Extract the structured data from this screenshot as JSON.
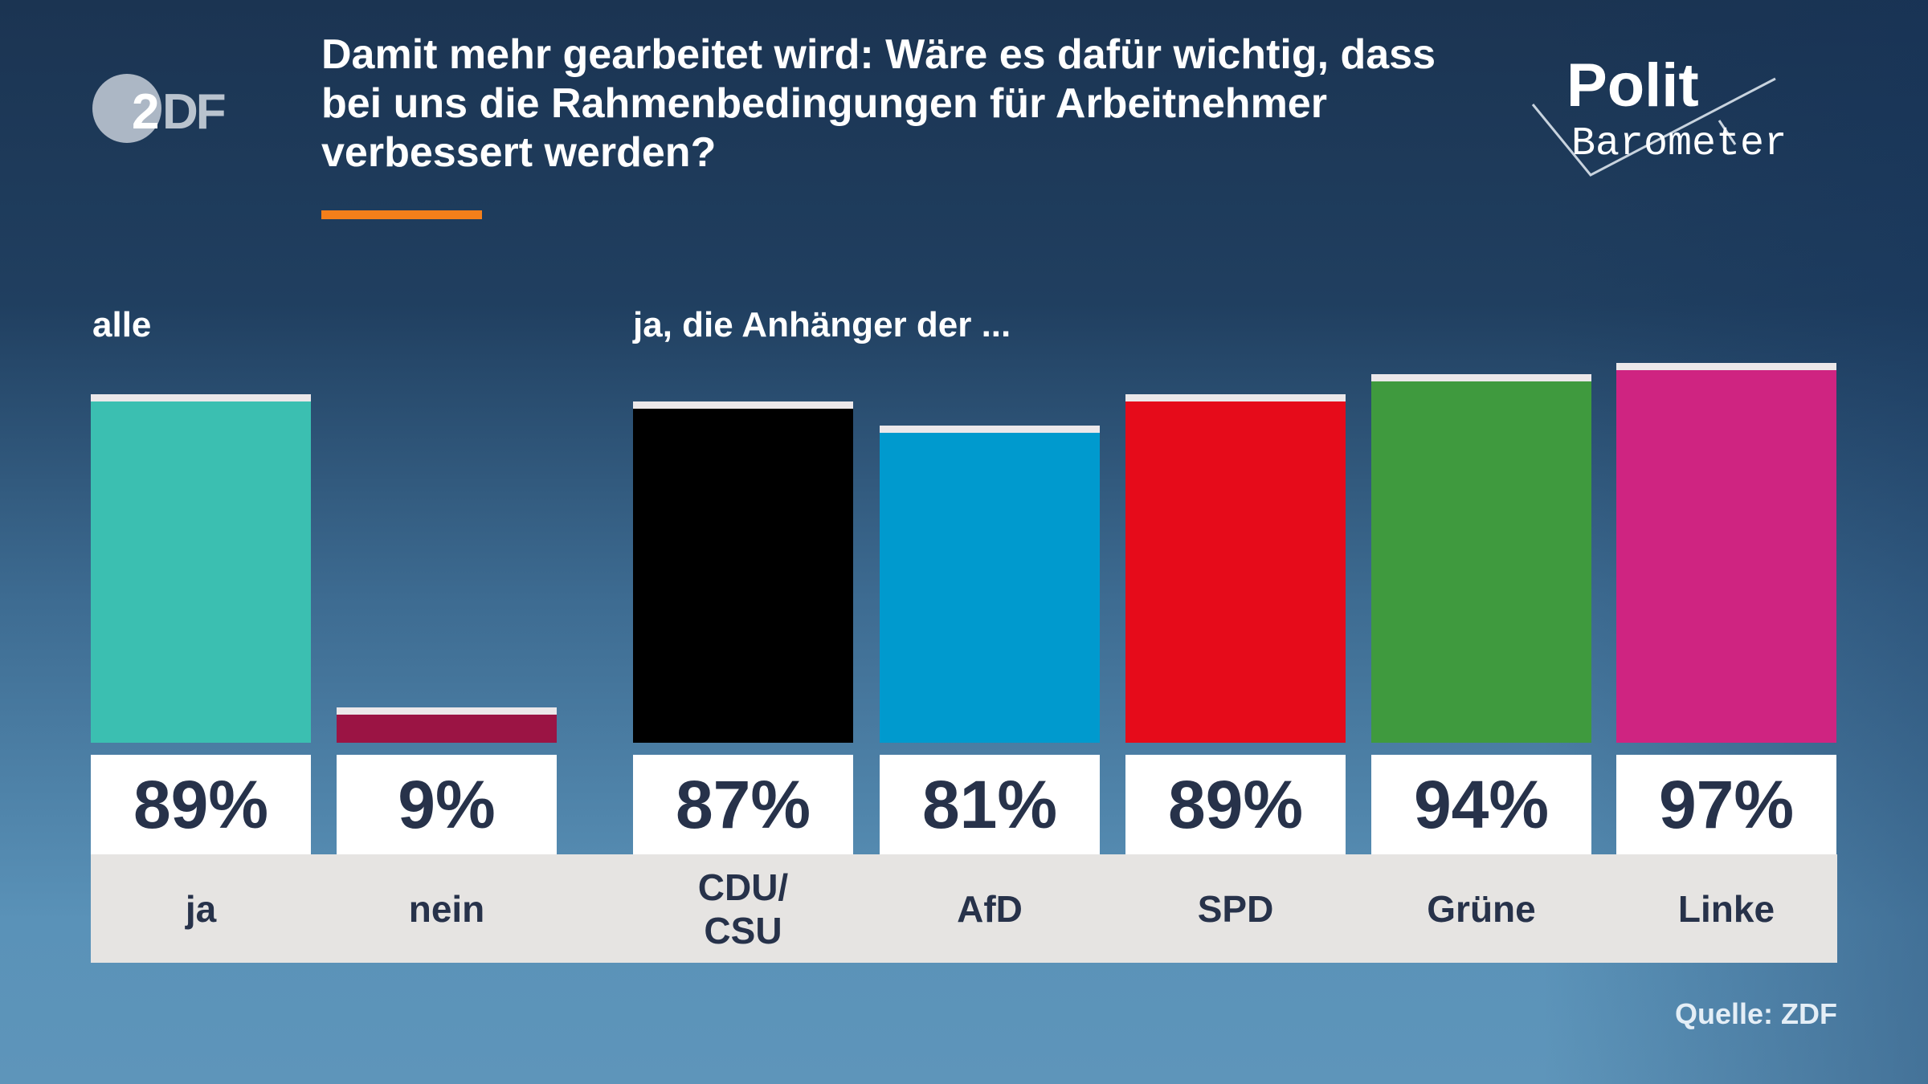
{
  "title": "Damit mehr gearbeitet wird: Wäre es dafür wichtig, dass bei uns die Rahmenbedingungen für Arbeitnehmer verbessert werden?",
  "logos": {
    "broadcaster": "ZDF",
    "program_line1": "Polit",
    "program_line2": "Barometer"
  },
  "accent_color": "#f47f1a",
  "source": "Quelle: ZDF",
  "chart_data": {
    "type": "bar",
    "groups": [
      {
        "label": "alle",
        "categories": [
          "ja",
          "nein"
        ]
      },
      {
        "label": "ja, die Anhänger der ...",
        "categories": [
          "CDU/\nCSU",
          "AfD",
          "SPD",
          "Grüne",
          "Linke"
        ]
      }
    ],
    "categories": [
      "ja",
      "nein",
      "CDU/\nCSU",
      "AfD",
      "SPD",
      "Grüne",
      "Linke"
    ],
    "values": [
      89,
      9,
      87,
      81,
      89,
      94,
      97
    ],
    "value_labels": [
      "89%",
      "9%",
      "87%",
      "81%",
      "89%",
      "94%",
      "97%"
    ],
    "colors": [
      "#3bbfb1",
      "#9b1444",
      "#000000",
      "#009ace",
      "#e60b1a",
      "#3f9a3e",
      "#cf2481"
    ],
    "unit": "%",
    "ylim": [
      0,
      100
    ],
    "grid": false
  }
}
